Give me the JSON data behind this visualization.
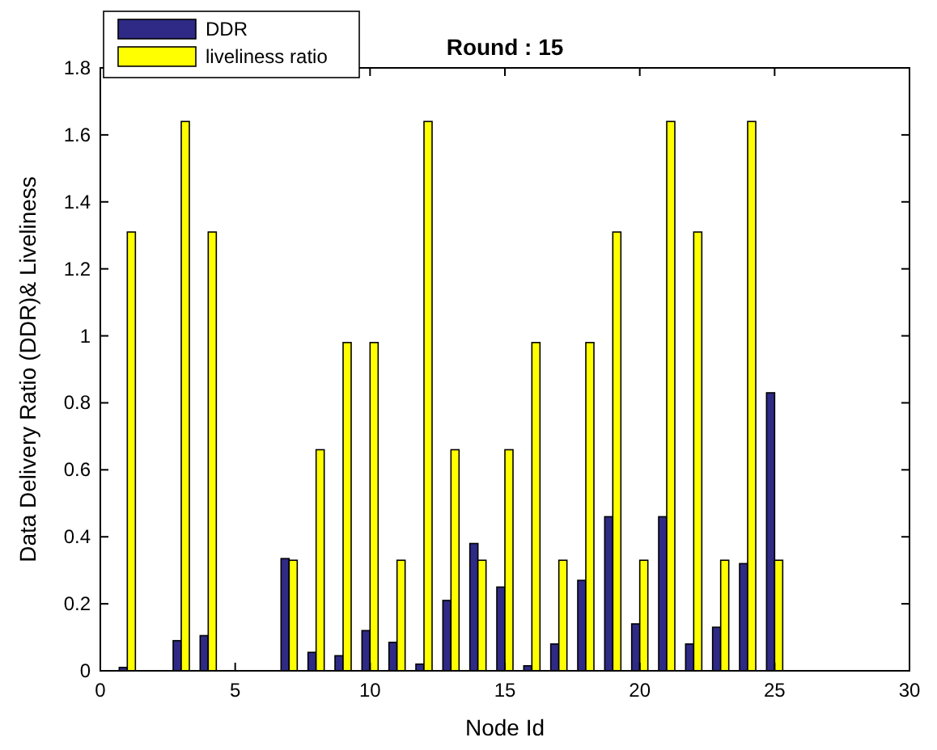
{
  "chart_data": {
    "type": "bar",
    "title": "Round : 15",
    "xlabel": "Node Id",
    "ylabel": "Data Delivery Ratio (DDR)& Liveliness",
    "x": [
      1,
      2,
      3,
      4,
      5,
      6,
      7,
      8,
      9,
      10,
      11,
      12,
      13,
      14,
      15,
      16,
      17,
      18,
      19,
      20,
      21,
      22,
      23,
      24,
      25
    ],
    "series": [
      {
        "name": "DDR",
        "color": "#2e2a85",
        "values": [
          0.01,
          0,
          0.09,
          0.105,
          0,
          0,
          0.335,
          0.055,
          0.045,
          0.12,
          0.085,
          0.02,
          0.21,
          0.38,
          0.25,
          0.015,
          0.08,
          0.27,
          0.46,
          0.14,
          0.46,
          0.08,
          0.13,
          0.32,
          0.83
        ]
      },
      {
        "name": "liveliness ratio",
        "color": "#ffff00",
        "values": [
          1.31,
          0,
          1.64,
          1.31,
          0,
          0,
          0.33,
          0.66,
          0.98,
          0.98,
          0.33,
          1.64,
          0.66,
          0.33,
          0.66,
          0.98,
          0.33,
          0.98,
          1.31,
          0.33,
          1.64,
          1.31,
          0.33,
          1.64,
          0.33
        ]
      }
    ],
    "xlim": [
      0,
      30
    ],
    "xticks": [
      0,
      5,
      10,
      15,
      20,
      25,
      30
    ],
    "ylim": [
      0,
      1.8
    ],
    "yticks": [
      0,
      0.2,
      0.4,
      0.6,
      0.8,
      1,
      1.2,
      1.4,
      1.6,
      1.8
    ],
    "grid": false,
    "legend": "top left"
  }
}
